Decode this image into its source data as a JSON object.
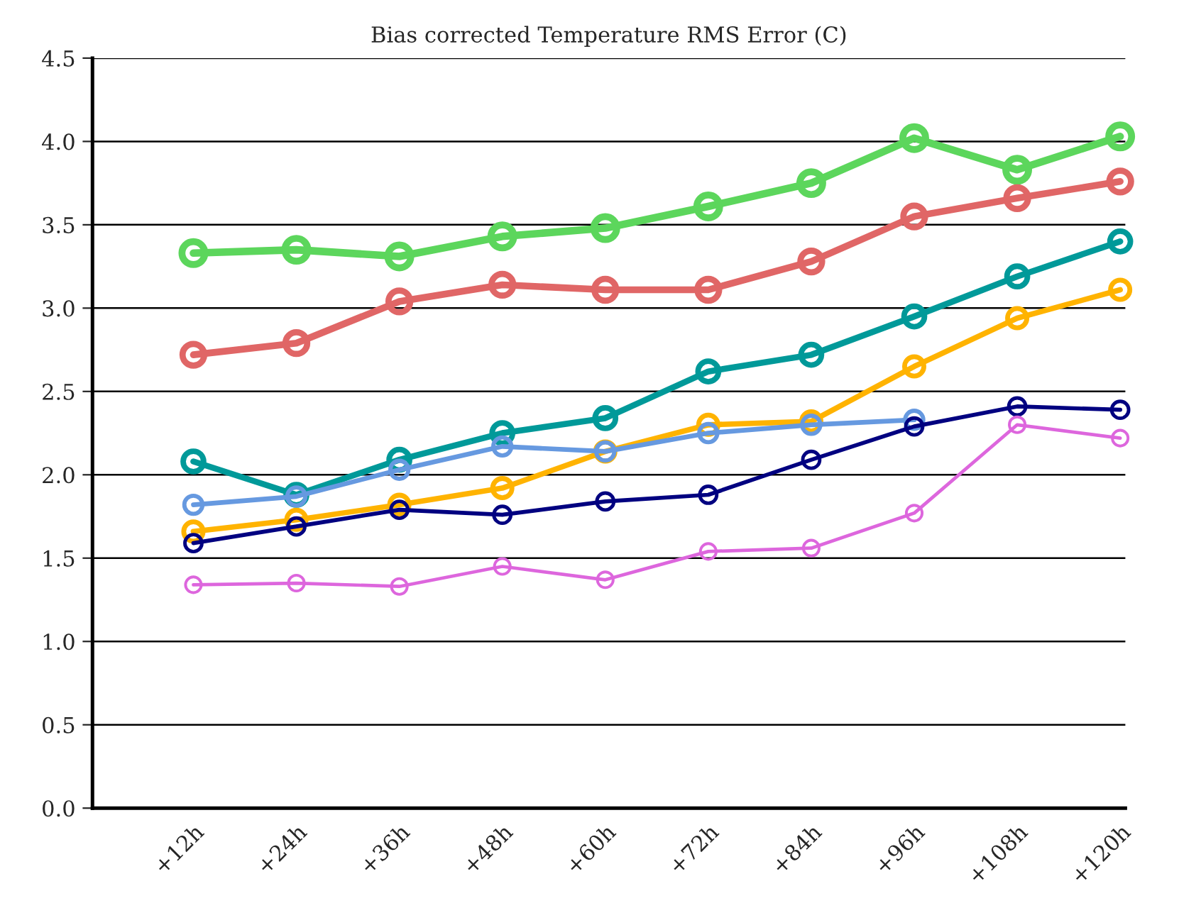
{
  "chart_data": {
    "type": "line",
    "title": "Bias corrected Temperature RMS Error (C)",
    "categories": [
      "+12h",
      "+24h",
      "+36h",
      "+48h",
      "+60h",
      "+72h",
      "+84h",
      "+96h",
      "+108h",
      "+120h"
    ],
    "series": [
      {
        "color": "#5cd65c",
        "values": [
          3.33,
          3.35,
          3.31,
          3.43,
          3.48,
          3.61,
          3.75,
          4.02,
          3.83,
          4.03
        ]
      },
      {
        "color": "#e06666",
        "values": [
          2.72,
          2.79,
          3.04,
          3.14,
          3.11,
          3.11,
          3.28,
          3.55,
          3.66,
          3.76
        ]
      },
      {
        "color": "#009999",
        "values": [
          2.08,
          1.88,
          2.09,
          2.25,
          2.34,
          2.62,
          2.72,
          2.95,
          3.19,
          3.4
        ]
      },
      {
        "color": "#ffb300",
        "values": [
          1.66,
          1.73,
          1.82,
          1.92,
          2.14,
          2.3,
          2.32,
          2.65,
          2.94,
          3.11
        ]
      },
      {
        "color": "#6699e0",
        "values": [
          1.82,
          1.87,
          2.03,
          2.17,
          2.14,
          2.25,
          2.3,
          2.33,
          null,
          null
        ]
      },
      {
        "color": "#000080",
        "values": [
          1.59,
          1.69,
          1.79,
          1.76,
          1.84,
          1.88,
          2.09,
          2.29,
          2.41,
          2.39
        ]
      },
      {
        "color": "#dd66dd",
        "values": [
          1.34,
          1.35,
          1.33,
          1.45,
          1.37,
          1.54,
          1.56,
          1.77,
          2.3,
          2.22
        ]
      }
    ],
    "ylim": [
      0,
      4.5
    ],
    "yticks": [
      {
        "value": 0,
        "label": "0.0"
      },
      {
        "value": 0.5,
        "label": "0.5"
      },
      {
        "value": 1,
        "label": "1.0"
      },
      {
        "value": 1.5,
        "label": "1.5"
      },
      {
        "value": 2,
        "label": "2.0"
      },
      {
        "value": 2.5,
        "label": "2.5"
      },
      {
        "value": 3,
        "label": "3.0"
      },
      {
        "value": 3.5,
        "label": "3.5"
      },
      {
        "value": 4,
        "label": "4.0"
      },
      {
        "value": 4.5,
        "label": "4.5"
      }
    ],
    "grid": "y",
    "marker": "circle",
    "line_style": "solid"
  }
}
